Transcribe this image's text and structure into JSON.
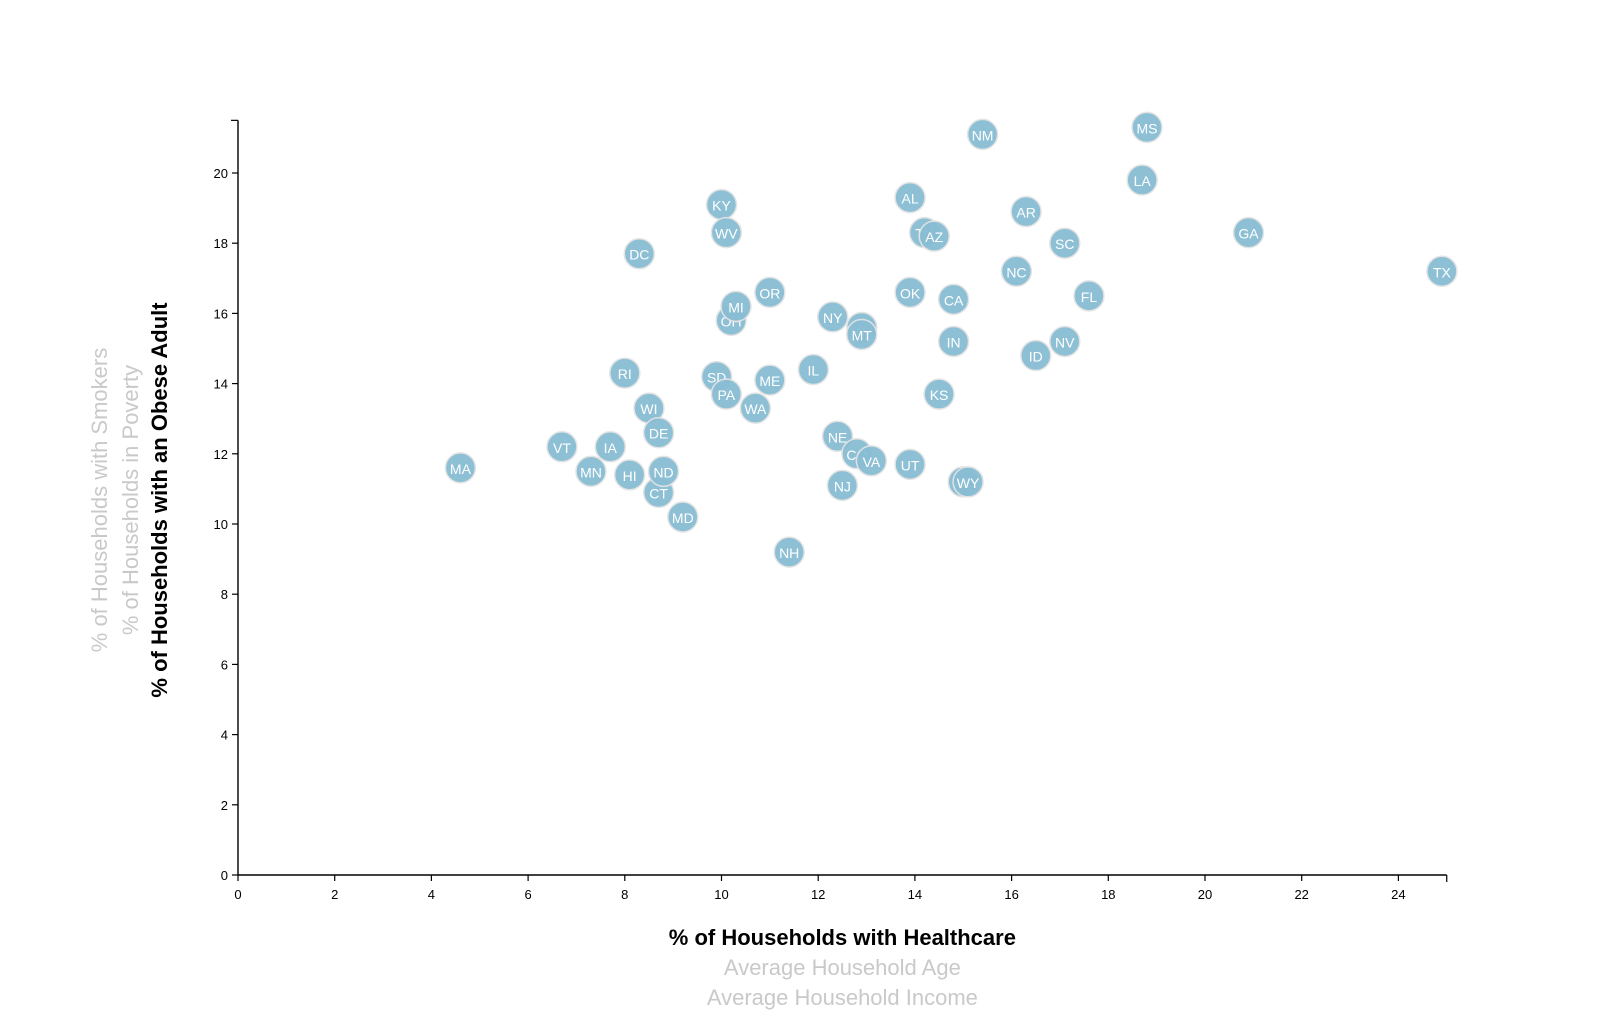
{
  "chart_data": {
    "type": "scatter",
    "x_axis": {
      "ticks": [
        "0",
        "2",
        "4",
        "6",
        "8",
        "10",
        "12",
        "14",
        "16",
        "18",
        "20",
        "22",
        "24"
      ],
      "xlim": [
        0,
        25
      ],
      "labels": [
        {
          "text": "% of Households with Healthcare",
          "active": true
        },
        {
          "text": "Average Household Age",
          "active": false
        },
        {
          "text": "Average Household Income",
          "active": false
        }
      ]
    },
    "y_axis": {
      "ticks": [
        "0",
        "2",
        "4",
        "6",
        "8",
        "10",
        "12",
        "14",
        "16",
        "18",
        "20"
      ],
      "ylim": [
        0,
        21.5
      ],
      "labels": [
        {
          "text": "% of Households with an Obese Adult",
          "active": true
        },
        {
          "text": "% of Households in Poverty",
          "active": false
        },
        {
          "text": "% of Households with Smokers",
          "active": false
        }
      ]
    },
    "point_color": "#89bdd3",
    "points": [
      {
        "label": "MA",
        "x": 4.6,
        "y": 11.6
      },
      {
        "label": "VT",
        "x": 6.7,
        "y": 12.2
      },
      {
        "label": "MN",
        "x": 7.3,
        "y": 11.5
      },
      {
        "label": "IA",
        "x": 7.7,
        "y": 12.2
      },
      {
        "label": "RI",
        "x": 8.0,
        "y": 14.3
      },
      {
        "label": "HI",
        "x": 8.1,
        "y": 11.4
      },
      {
        "label": "DC",
        "x": 8.3,
        "y": 17.7
      },
      {
        "label": "WI",
        "x": 8.5,
        "y": 13.3
      },
      {
        "label": "DE",
        "x": 8.7,
        "y": 12.6
      },
      {
        "label": "CT",
        "x": 8.7,
        "y": 10.9
      },
      {
        "label": "ND",
        "x": 8.8,
        "y": 11.5
      },
      {
        "label": "MD",
        "x": 9.2,
        "y": 10.2
      },
      {
        "label": "SD",
        "x": 9.9,
        "y": 14.2
      },
      {
        "label": "KY",
        "x": 10.0,
        "y": 19.1
      },
      {
        "label": "WV",
        "x": 10.1,
        "y": 18.3
      },
      {
        "label": "PA",
        "x": 10.1,
        "y": 13.7
      },
      {
        "label": "OH",
        "x": 10.2,
        "y": 15.8
      },
      {
        "label": "MI",
        "x": 10.3,
        "y": 16.2
      },
      {
        "label": "WA",
        "x": 10.7,
        "y": 13.3
      },
      {
        "label": "OR",
        "x": 11.0,
        "y": 16.6
      },
      {
        "label": "ME",
        "x": 11.0,
        "y": 14.1
      },
      {
        "label": "NH",
        "x": 11.4,
        "y": 9.2
      },
      {
        "label": "IL",
        "x": 11.9,
        "y": 14.4
      },
      {
        "label": "NY",
        "x": 12.3,
        "y": 15.9
      },
      {
        "label": "NE",
        "x": 12.4,
        "y": 12.5
      },
      {
        "label": "NJ",
        "x": 12.5,
        "y": 11.1
      },
      {
        "label": "CO",
        "x": 12.8,
        "y": 12.0
      },
      {
        "label": "MO",
        "x": 12.9,
        "y": 15.6
      },
      {
        "label": "MT",
        "x": 12.9,
        "y": 15.4
      },
      {
        "label": "VA",
        "x": 13.1,
        "y": 11.8
      },
      {
        "label": "AL",
        "x": 13.9,
        "y": 19.3
      },
      {
        "label": "OK",
        "x": 13.9,
        "y": 16.6
      },
      {
        "label": "UT",
        "x": 13.9,
        "y": 11.7
      },
      {
        "label": "TN",
        "x": 14.2,
        "y": 18.3
      },
      {
        "label": "AZ",
        "x": 14.4,
        "y": 18.2
      },
      {
        "label": "KS",
        "x": 14.5,
        "y": 13.7
      },
      {
        "label": "NM",
        "x": 15.4,
        "y": 21.1
      },
      {
        "label": "CA",
        "x": 14.8,
        "y": 16.4
      },
      {
        "label": "IN",
        "x": 14.8,
        "y": 15.2
      },
      {
        "label": "AK",
        "x": 15.0,
        "y": 11.2
      },
      {
        "label": "WY",
        "x": 15.1,
        "y": 11.2
      },
      {
        "label": "NC",
        "x": 16.1,
        "y": 17.2
      },
      {
        "label": "AR",
        "x": 16.3,
        "y": 18.9
      },
      {
        "label": "ID",
        "x": 16.5,
        "y": 14.8
      },
      {
        "label": "SC",
        "x": 17.1,
        "y": 18.0
      },
      {
        "label": "NV",
        "x": 17.1,
        "y": 15.2
      },
      {
        "label": "FL",
        "x": 17.6,
        "y": 16.5
      },
      {
        "label": "LA",
        "x": 18.7,
        "y": 19.8
      },
      {
        "label": "MS",
        "x": 18.8,
        "y": 21.3
      },
      {
        "label": "GA",
        "x": 20.9,
        "y": 18.3
      },
      {
        "label": "TX",
        "x": 24.9,
        "y": 17.2
      }
    ]
  }
}
